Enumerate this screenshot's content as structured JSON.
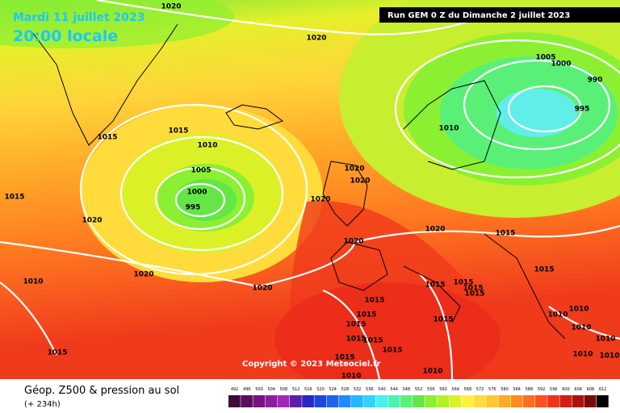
{
  "header": {
    "date": "Mardi 11 juillet 2023",
    "time": "20:00 locale",
    "run": "Run GEM 0 Z du Dimanche 2 juillet 2023"
  },
  "copyright": "Copyright © 2023 Meteociel.fr",
  "footer": {
    "title": "Géop. Z500 & pression au sol",
    "lead": "(+ 234h)"
  },
  "isobar_labels": [
    1020,
    1020,
    1005,
    1000,
    990,
    995,
    1015,
    1015,
    1010,
    1010,
    1005,
    1020,
    1020,
    1000,
    995,
    1015,
    1020,
    1020,
    1020,
    1015,
    1020,
    1020,
    1010,
    1015,
    1020,
    1015,
    1015,
    1015,
    1015,
    1015,
    1015,
    1010,
    1010,
    1015,
    1015,
    1010,
    1015,
    1015,
    1015,
    1015,
    1015,
    1010,
    1010,
    1010,
    1010,
    1010
  ],
  "scale": {
    "values": [
      492,
      496,
      500,
      504,
      508,
      512,
      516,
      520,
      524,
      528,
      532,
      536,
      540,
      544,
      548,
      552,
      556,
      560,
      564,
      568,
      572,
      576,
      580,
      584,
      588,
      592,
      596,
      600,
      604,
      608,
      612
    ],
    "colors": [
      "#3c0a3c",
      "#5a0f5a",
      "#78147d",
      "#8c1e9b",
      "#a028b4",
      "#5a1eaa",
      "#2828c8",
      "#1e46dc",
      "#1e64f0",
      "#1e8cff",
      "#28b4ff",
      "#32d2ff",
      "#46f0f0",
      "#50f0b4",
      "#5af078",
      "#64e646",
      "#8cf032",
      "#b4f028",
      "#dcf028",
      "#fff03c",
      "#ffdc3c",
      "#ffc832",
      "#ffaa28",
      "#ff8c1e",
      "#ff6e1e",
      "#ff501e",
      "#f03219",
      "#d21e14",
      "#aa140f",
      "#7d0a0a",
      "#000000"
    ]
  }
}
